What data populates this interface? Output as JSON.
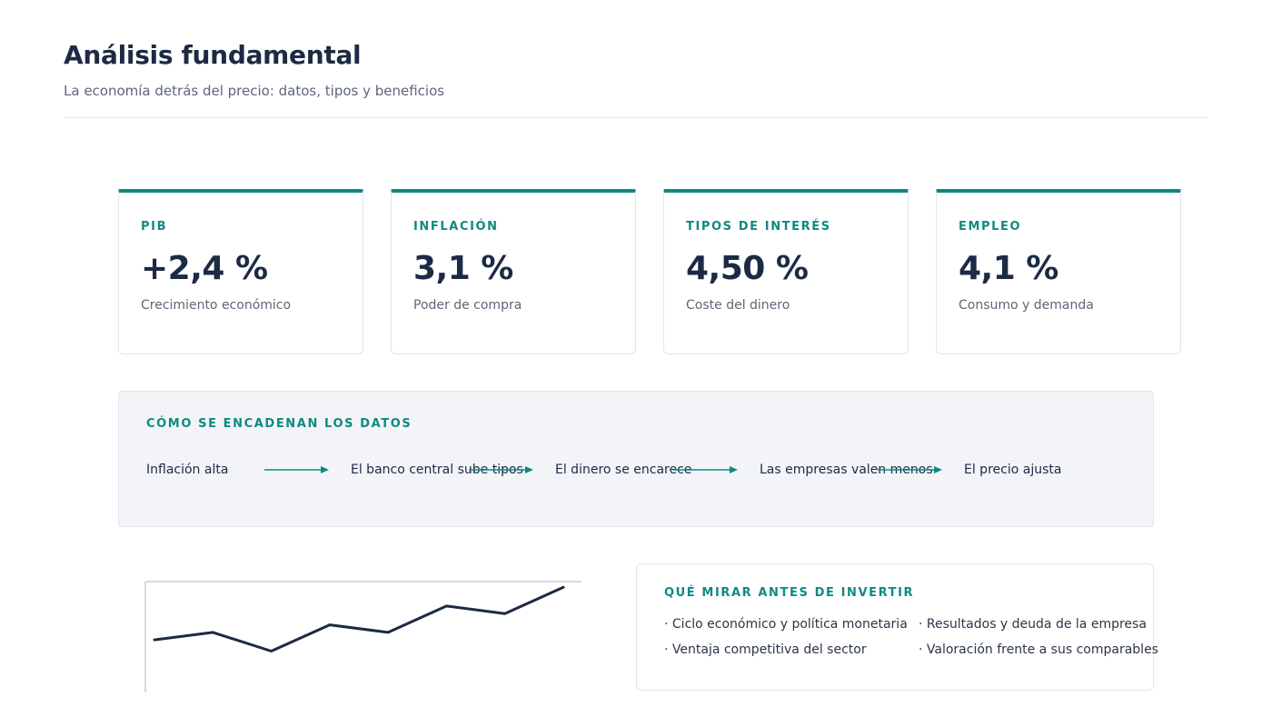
{
  "header": {
    "title": "Análisis fundamental",
    "subtitle": "La economía detrás del precio: datos, tipos y beneficios"
  },
  "kpis": [
    {
      "label": "PIB",
      "value": "+2,4 %",
      "desc": "Crecimiento económico"
    },
    {
      "label": "INFLACIÓN",
      "value": "3,1 %",
      "desc": "Poder de compra"
    },
    {
      "label": "TIPOS DE INTERÉS",
      "value": "4,50 %",
      "desc": "Coste del dinero"
    },
    {
      "label": "EMPLEO",
      "value": "4,1 %",
      "desc": "Consumo y demanda"
    }
  ],
  "chain": {
    "title": "CÓMO SE ENCADENAN LOS DATOS",
    "steps": [
      "Inflación alta",
      "El banco central sube tipos",
      "El dinero se encarece",
      "Las empresas valen menos",
      "El precio ajusta"
    ]
  },
  "chart_data": {
    "type": "line",
    "x": [
      1,
      2,
      3,
      4,
      5,
      6,
      7,
      8
    ],
    "series": [
      {
        "values": [
          7.0,
          8.0,
          5.5,
          9.0,
          8.0,
          11.5,
          10.5,
          14.0
        ]
      }
    ],
    "title": "",
    "xlabel": "",
    "ylabel": "",
    "ylim": [
      0,
      15
    ],
    "grid": false,
    "color": "#1c2a44"
  },
  "tips": {
    "title": "QUÉ MIRAR ANTES DE INVERTIR",
    "items": [
      "· Ciclo económico y política monetaria",
      "· Resultados y deuda de la empresa",
      "· Ventaja competitiva del sector",
      "· Valoración frente a sus comparables"
    ]
  },
  "colors": {
    "accent": "#0e8a82",
    "text": "#1c2a44",
    "muted": "#5d6677",
    "panel": "#f2f4f8"
  }
}
